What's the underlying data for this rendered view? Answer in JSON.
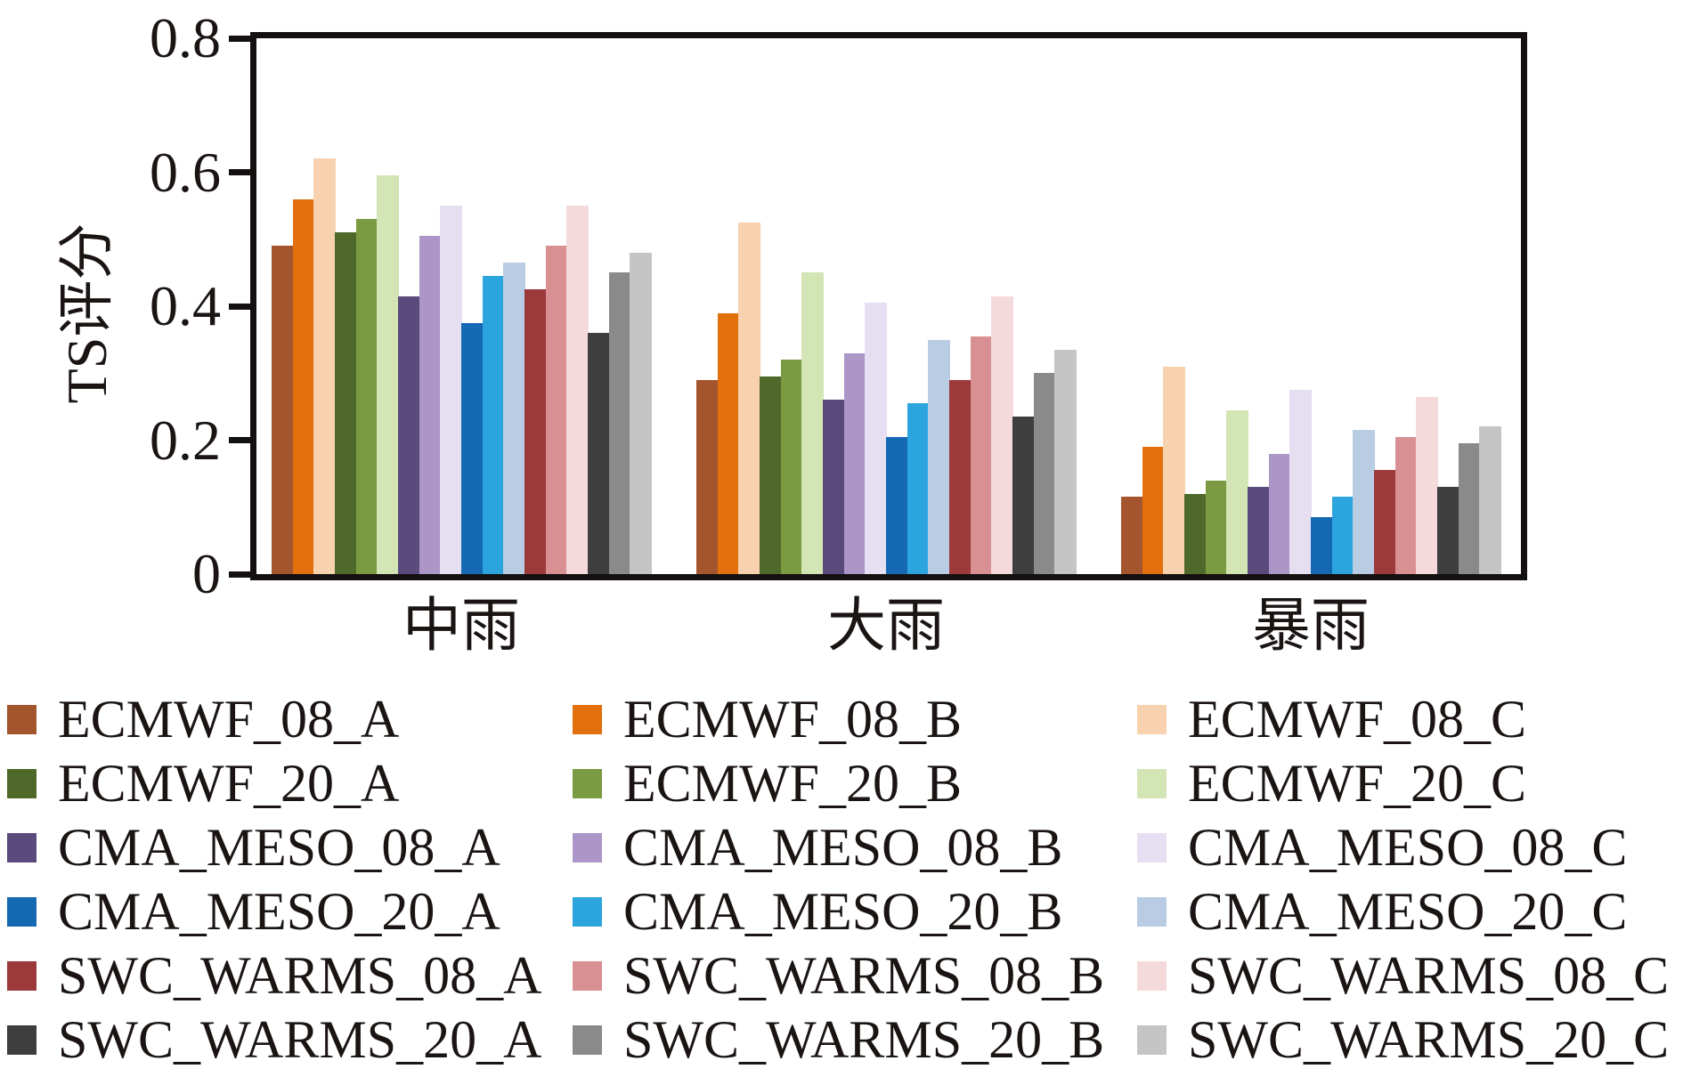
{
  "colors": {
    "background": "#FFFFFF",
    "axis": "#141010",
    "text": "#1A1413"
  },
  "chart_data": {
    "type": "bar",
    "title": "",
    "xlabel": "",
    "ylabel": "TS评分",
    "categories": [
      "中雨",
      "大雨",
      "暴雨"
    ],
    "ylim": [
      0,
      0.8
    ],
    "yticks": [
      "0",
      "0.2",
      "0.4",
      "0.6",
      "0.8"
    ],
    "grid": false,
    "legend_position": "bottom",
    "legend_columns": 3,
    "series": [
      {
        "name": "ECMWF_08_A",
        "color": "#A4552D",
        "values": [
          0.49,
          0.29,
          0.115
        ]
      },
      {
        "name": "ECMWF_08_B",
        "color": "#E2700D",
        "values": [
          0.56,
          0.39,
          0.19
        ]
      },
      {
        "name": "ECMWF_08_C",
        "color": "#F8D1AE",
        "values": [
          0.62,
          0.525,
          0.31
        ]
      },
      {
        "name": "ECMWF_20_A",
        "color": "#4E6929",
        "values": [
          0.51,
          0.295,
          0.12
        ]
      },
      {
        "name": "ECMWF_20_B",
        "color": "#7A9B41",
        "values": [
          0.53,
          0.32,
          0.14
        ]
      },
      {
        "name": "ECMWF_20_C",
        "color": "#D3E4B5",
        "values": [
          0.595,
          0.45,
          0.245
        ]
      },
      {
        "name": "CMA_MESO_08_A",
        "color": "#5B4A7C",
        "values": [
          0.415,
          0.26,
          0.13
        ]
      },
      {
        "name": "CMA_MESO_08_B",
        "color": "#AB96C7",
        "values": [
          0.505,
          0.33,
          0.18
        ]
      },
      {
        "name": "CMA_MESO_08_C",
        "color": "#E6DFF1",
        "values": [
          0.55,
          0.405,
          0.275
        ]
      },
      {
        "name": "CMA_MESO_20_A",
        "color": "#1569B3",
        "values": [
          0.375,
          0.205,
          0.085
        ]
      },
      {
        "name": "CMA_MESO_20_B",
        "color": "#2CA5DF",
        "values": [
          0.445,
          0.255,
          0.115
        ]
      },
      {
        "name": "CMA_MESO_20_C",
        "color": "#B8CCE4",
        "values": [
          0.465,
          0.35,
          0.215
        ]
      },
      {
        "name": "SWC_WARMS_08_A",
        "color": "#9C3A3B",
        "values": [
          0.425,
          0.29,
          0.155
        ]
      },
      {
        "name": "SWC_WARMS_08_B",
        "color": "#D99093",
        "values": [
          0.49,
          0.355,
          0.205
        ]
      },
      {
        "name": "SWC_WARMS_08_C",
        "color": "#F5DADB",
        "values": [
          0.55,
          0.415,
          0.265
        ]
      },
      {
        "name": "SWC_WARMS_20_A",
        "color": "#3E3E3E",
        "values": [
          0.36,
          0.235,
          0.13
        ]
      },
      {
        "name": "SWC_WARMS_20_B",
        "color": "#8A8A8A",
        "values": [
          0.45,
          0.3,
          0.195
        ]
      },
      {
        "name": "SWC_WARMS_20_C",
        "color": "#C5C5C5",
        "values": [
          0.48,
          0.335,
          0.22
        ]
      }
    ]
  }
}
